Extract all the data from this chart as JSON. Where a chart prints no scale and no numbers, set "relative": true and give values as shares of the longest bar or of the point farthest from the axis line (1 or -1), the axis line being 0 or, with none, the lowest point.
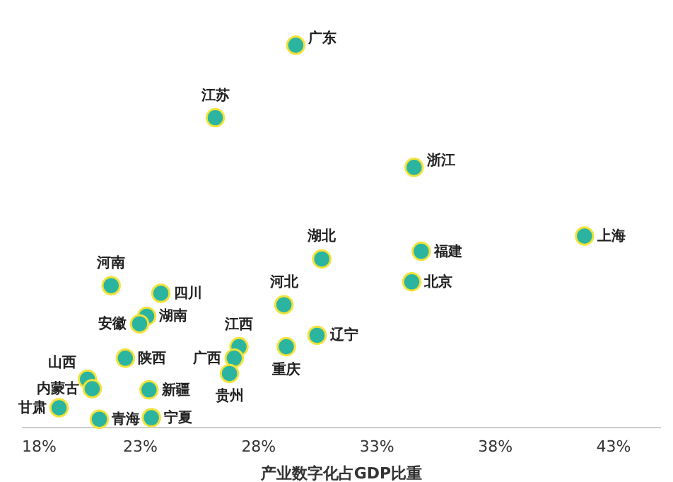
{
  "chart_data": {
    "type": "scatter",
    "xlabel": "产业数字化占GDP比重",
    "relative": true,
    "marker": "circle",
    "grid": false,
    "xlim": [
      18,
      45
    ],
    "xticks": [
      {
        "value": 18,
        "label": "18%"
      },
      {
        "value": 23,
        "label": "23%"
      },
      {
        "value": 28,
        "label": "28%"
      },
      {
        "value": 33,
        "label": "33%"
      },
      {
        "value": 38,
        "label": "38%"
      },
      {
        "value": 43,
        "label": "43%"
      }
    ],
    "series": [
      {
        "color": "#2bb5a0",
        "x": [
          29.6,
          26.2,
          34.6,
          41.8,
          34.9,
          30.7,
          34.5,
          21.8,
          23.9,
          29.1,
          23.3,
          23.0,
          30.5,
          27.2,
          29.2,
          22.4,
          27.0,
          26.8,
          20.8,
          21.0,
          23.4,
          19.6,
          21.3,
          23.5
        ],
        "values": [
          1,
          0.81,
          0.68,
          0.5,
          0.46,
          0.44,
          0.38,
          0.37,
          0.35,
          0.32,
          0.29,
          0.27,
          0.24,
          0.21,
          0.21,
          0.18,
          0.18,
          0.14,
          0.125,
          0.1,
          0.097,
          0.05,
          0.02,
          0.024
        ]
      }
    ],
    "annotations": [
      {
        "text": "广东",
        "x": 29.6,
        "y": 1
      },
      {
        "text": "江苏",
        "x": 26.2,
        "y": 0.81
      },
      {
        "text": "浙江",
        "x": 34.6,
        "y": 0.68
      },
      {
        "text": "上海",
        "x": 41.8,
        "y": 0.5
      },
      {
        "text": "福建",
        "x": 34.9,
        "y": 0.46
      },
      {
        "text": "湖北",
        "x": 30.7,
        "y": 0.44
      },
      {
        "text": "北京",
        "x": 34.5,
        "y": 0.38
      },
      {
        "text": "河南",
        "x": 21.8,
        "y": 0.37
      },
      {
        "text": "四川",
        "x": 23.9,
        "y": 0.35
      },
      {
        "text": "河北",
        "x": 29.1,
        "y": 0.32
      },
      {
        "text": "湖南",
        "x": 23.3,
        "y": 0.29
      },
      {
        "text": "安徽",
        "x": 23.0,
        "y": 0.27
      },
      {
        "text": "辽宁",
        "x": 30.5,
        "y": 0.24
      },
      {
        "text": "江西",
        "x": 27.2,
        "y": 0.21
      },
      {
        "text": "重庆",
        "x": 29.2,
        "y": 0.21
      },
      {
        "text": "陕西",
        "x": 22.4,
        "y": 0.18
      },
      {
        "text": "广西",
        "x": 27.0,
        "y": 0.18
      },
      {
        "text": "贵州",
        "x": 26.8,
        "y": 0.14
      },
      {
        "text": "山西",
        "x": 20.8,
        "y": 0.125
      },
      {
        "text": "内蒙古",
        "x": 21.0,
        "y": 0.1
      },
      {
        "text": "新疆",
        "x": 23.4,
        "y": 0.097
      },
      {
        "text": "甘肃",
        "x": 19.6,
        "y": 0.05
      },
      {
        "text": "青海",
        "x": 21.3,
        "y": 0.02
      },
      {
        "text": "宁夏",
        "x": 23.5,
        "y": 0.024
      }
    ]
  }
}
